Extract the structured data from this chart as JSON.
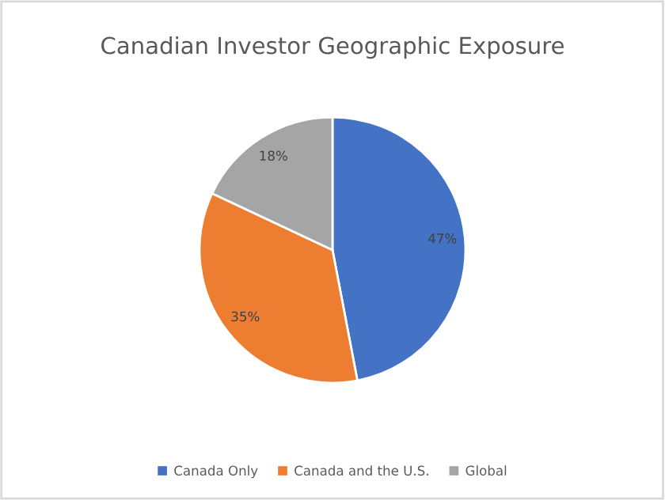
{
  "chart_data": {
    "type": "pie",
    "title": "Canadian Investor Geographic Exposure",
    "categories": [
      "Canada Only",
      "Canada and the U.S.",
      "Global"
    ],
    "values": [
      47,
      35,
      18
    ],
    "colors": [
      "#4472c4",
      "#ed7d31",
      "#a5a5a5"
    ],
    "value_labels": [
      "47%",
      "35%",
      "18%"
    ],
    "legend": "bottom"
  }
}
